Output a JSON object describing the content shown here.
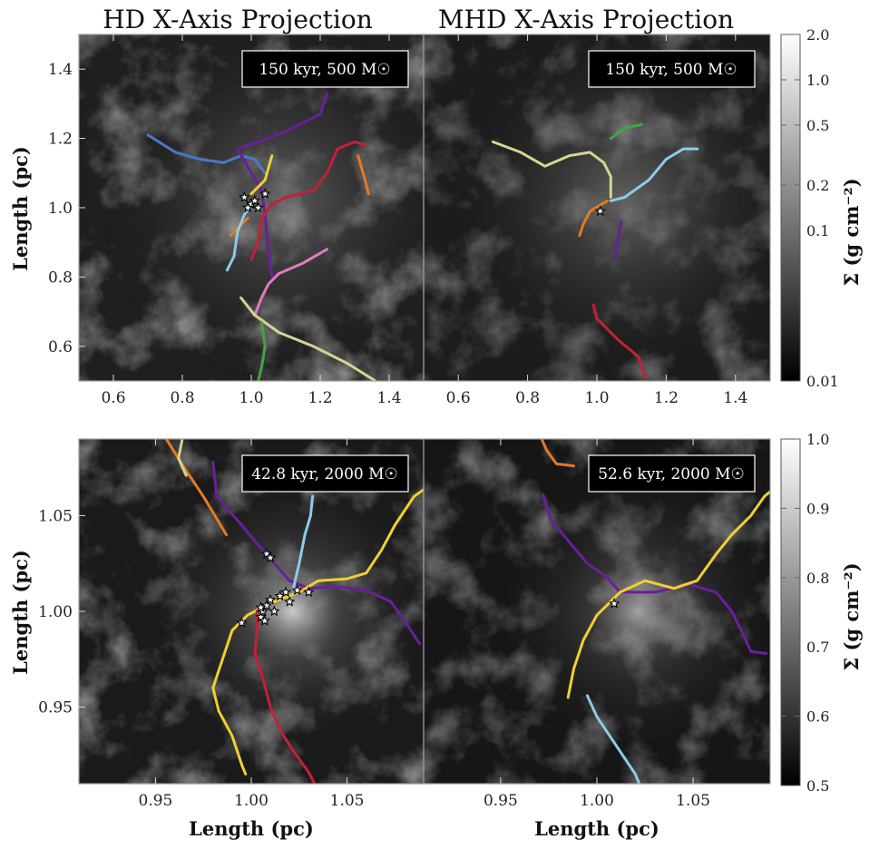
{
  "titles": {
    "left": "HD X-Axis Projection",
    "right": "MHD X-Axis Projection"
  },
  "axis_labels": {
    "x": "Length (pc)",
    "y": "Length (pc)",
    "colorbar": "Σ (g cm⁻²)"
  },
  "colors": {
    "blue": "#4a78c8",
    "purple": "#6a1f9a",
    "red": "#c42035",
    "yellow": "#f0d030",
    "orange": "#e57a22",
    "lightblue": "#8ccbea",
    "pink": "#e07cc2",
    "khaki": "#d8d490",
    "green": "#44a540"
  },
  "chart_data": [
    {
      "type": "heatmap",
      "panel": "top-left",
      "annotation": "150 kyr, 500 M☉",
      "xlim": [
        0.5,
        1.5
      ],
      "ylim": [
        0.5,
        1.5
      ],
      "xticks": [
        "0.6",
        "0.8",
        "1.0",
        "1.2",
        "1.4"
      ],
      "yticks": [
        "0.6",
        "0.8",
        "1.0",
        "1.2",
        "1.4"
      ],
      "stars": [
        [
          0.98,
          1.03
        ],
        [
          1.0,
          1.01
        ],
        [
          1.02,
          1.0
        ],
        [
          1.04,
          1.04
        ],
        [
          0.99,
          1.0
        ],
        [
          1.01,
          1.02
        ]
      ],
      "tracks": [
        {
          "color": "blue",
          "points": [
            [
              0.7,
              1.21
            ],
            [
              0.78,
              1.16
            ],
            [
              0.85,
              1.14
            ],
            [
              0.92,
              1.13
            ],
            [
              0.97,
              1.15
            ],
            [
              1.01,
              1.14
            ],
            [
              1.04,
              1.1
            ]
          ]
        },
        {
          "color": "purple",
          "points": [
            [
              1.22,
              1.33
            ],
            [
              1.2,
              1.27
            ],
            [
              1.14,
              1.24
            ],
            [
              1.1,
              1.22
            ],
            [
              1.05,
              1.2
            ],
            [
              0.96,
              1.17
            ],
            [
              1.03,
              1.05
            ],
            [
              1.04,
              0.98
            ],
            [
              1.05,
              0.87
            ],
            [
              1.06,
              0.8
            ]
          ]
        },
        {
          "color": "red",
          "points": [
            [
              1.33,
              1.18
            ],
            [
              1.3,
              1.19
            ],
            [
              1.25,
              1.17
            ],
            [
              1.22,
              1.1
            ],
            [
              1.18,
              1.05
            ],
            [
              1.1,
              1.03
            ],
            [
              1.06,
              1.01
            ],
            [
              1.03,
              0.97
            ],
            [
              1.02,
              0.9
            ],
            [
              1.0,
              0.85
            ]
          ]
        },
        {
          "color": "yellow",
          "points": [
            [
              1.06,
              1.15
            ],
            [
              1.04,
              1.08
            ],
            [
              1.02,
              1.06
            ],
            [
              1.0,
              1.04
            ]
          ]
        },
        {
          "color": "orange",
          "points": [
            [
              1.31,
              1.15
            ],
            [
              1.33,
              1.08
            ],
            [
              1.34,
              1.04
            ]
          ]
        },
        {
          "color": "orange",
          "points": [
            [
              0.94,
              0.92
            ],
            [
              0.97,
              0.95
            ],
            [
              0.99,
              0.97
            ]
          ]
        },
        {
          "color": "lightblue",
          "points": [
            [
              1.01,
              1.02
            ],
            [
              0.98,
              0.98
            ],
            [
              0.96,
              0.93
            ],
            [
              0.95,
              0.86
            ],
            [
              0.93,
              0.82
            ]
          ]
        },
        {
          "color": "pink",
          "points": [
            [
              1.22,
              0.88
            ],
            [
              1.15,
              0.84
            ],
            [
              1.08,
              0.81
            ],
            [
              1.05,
              0.78
            ],
            [
              1.03,
              0.74
            ],
            [
              1.01,
              0.69
            ]
          ]
        },
        {
          "color": "khaki",
          "points": [
            [
              0.97,
              0.74
            ],
            [
              1.01,
              0.69
            ],
            [
              1.08,
              0.64
            ],
            [
              1.18,
              0.6
            ],
            [
              1.28,
              0.55
            ],
            [
              1.36,
              0.5
            ]
          ]
        },
        {
          "color": "green",
          "points": [
            [
              1.03,
              0.67
            ],
            [
              1.04,
              0.6
            ],
            [
              1.03,
              0.54
            ],
            [
              1.02,
              0.5
            ]
          ]
        }
      ]
    },
    {
      "type": "heatmap",
      "panel": "top-right",
      "annotation": "150 kyr, 500 M☉",
      "xlim": [
        0.5,
        1.5
      ],
      "ylim": [
        0.5,
        1.5
      ],
      "xticks": [
        "0.6",
        "0.8",
        "1.0",
        "1.2",
        "1.4"
      ],
      "yticks": [],
      "stars": [
        [
          1.01,
          0.99
        ]
      ],
      "tracks": [
        {
          "color": "khaki",
          "points": [
            [
              0.7,
              1.19
            ],
            [
              0.78,
              1.16
            ],
            [
              0.85,
              1.12
            ],
            [
              0.92,
              1.15
            ],
            [
              0.98,
              1.16
            ],
            [
              1.02,
              1.13
            ],
            [
              1.04,
              1.09
            ],
            [
              1.04,
              1.03
            ]
          ]
        },
        {
          "color": "green",
          "points": [
            [
              1.04,
              1.2
            ],
            [
              1.08,
              1.23
            ],
            [
              1.13,
              1.24
            ]
          ]
        },
        {
          "color": "lightblue",
          "points": [
            [
              1.29,
              1.17
            ],
            [
              1.25,
              1.17
            ],
            [
              1.2,
              1.14
            ],
            [
              1.15,
              1.08
            ],
            [
              1.08,
              1.03
            ],
            [
              1.04,
              1.02
            ]
          ]
        },
        {
          "color": "orange",
          "points": [
            [
              1.03,
              1.02
            ],
            [
              0.98,
              0.99
            ],
            [
              0.96,
              0.95
            ],
            [
              0.95,
              0.92
            ]
          ]
        },
        {
          "color": "purple",
          "points": [
            [
              1.07,
              0.96
            ],
            [
              1.06,
              0.9
            ],
            [
              1.05,
              0.85
            ]
          ]
        },
        {
          "color": "red",
          "points": [
            [
              0.99,
              0.72
            ],
            [
              1.0,
              0.68
            ],
            [
              1.06,
              0.62
            ],
            [
              1.12,
              0.57
            ],
            [
              1.14,
              0.51
            ]
          ]
        }
      ]
    },
    {
      "type": "heatmap",
      "panel": "bottom-left",
      "annotation": "42.8 kyr, 2000 M☉",
      "xlim": [
        0.91,
        1.09
      ],
      "ylim": [
        0.91,
        1.09
      ],
      "xticks": [
        "0.95",
        "1.00",
        "1.05"
      ],
      "yticks": [
        "0.95",
        "1.00",
        "1.05"
      ],
      "stars": [
        [
          1.008,
          1.03
        ],
        [
          1.01,
          1.028
        ],
        [
          0.995,
          0.994
        ],
        [
          1.005,
          0.997
        ],
        [
          1.006,
          1.0
        ],
        [
          1.008,
          1.003
        ],
        [
          1.01,
          1.006
        ],
        [
          1.012,
          1.0
        ],
        [
          1.015,
          1.008
        ],
        [
          1.018,
          1.01
        ],
        [
          1.02,
          1.005
        ],
        [
          1.024,
          1.011
        ],
        [
          1.03,
          1.01
        ],
        [
          1.005,
          1.002
        ],
        [
          1.007,
          0.995
        ]
      ],
      "tracks": [
        {
          "color": "orange",
          "points": [
            [
              0.955,
              1.091
            ],
            [
              0.965,
              1.075
            ],
            [
              0.975,
              1.06
            ],
            [
              0.987,
              1.04
            ]
          ]
        },
        {
          "color": "khaki",
          "points": [
            [
              0.964,
              1.09
            ],
            [
              0.962,
              1.08
            ],
            [
              0.966,
              1.071
            ]
          ]
        },
        {
          "color": "purple",
          "points": [
            [
              0.98,
              1.078
            ],
            [
              0.982,
              1.06
            ],
            [
              0.995,
              1.045
            ],
            [
              1.005,
              1.033
            ],
            [
              1.012,
              1.025
            ],
            [
              1.02,
              1.016
            ],
            [
              1.03,
              1.012
            ],
            [
              1.045,
              1.013
            ],
            [
              1.06,
              1.011
            ],
            [
              1.073,
              1.005
            ],
            [
              1.08,
              0.995
            ],
            [
              1.088,
              0.983
            ]
          ]
        },
        {
          "color": "lightblue",
          "points": [
            [
              1.032,
              1.06
            ],
            [
              1.031,
              1.05
            ],
            [
              1.028,
              1.04
            ],
            [
              1.025,
              1.025
            ],
            [
              1.022,
              1.012
            ]
          ]
        },
        {
          "color": "yellow",
          "points": [
            [
              1.092,
              1.065
            ],
            [
              1.085,
              1.06
            ],
            [
              1.075,
              1.045
            ],
            [
              1.068,
              1.032
            ],
            [
              1.06,
              1.02
            ],
            [
              1.05,
              1.017
            ],
            [
              1.035,
              1.016
            ],
            [
              1.025,
              1.01
            ],
            [
              1.012,
              1.005
            ],
            [
              0.998,
              0.998
            ],
            [
              0.99,
              0.99
            ],
            [
              0.985,
              0.975
            ],
            [
              0.98,
              0.96
            ],
            [
              0.983,
              0.948
            ],
            [
              0.99,
              0.935
            ],
            [
              0.995,
              0.92
            ],
            [
              0.997,
              0.915
            ]
          ]
        },
        {
          "color": "red",
          "points": [
            [
              1.003,
              1.0
            ],
            [
              1.003,
              0.99
            ],
            [
              1.002,
              0.978
            ],
            [
              1.006,
              0.965
            ],
            [
              1.01,
              0.95
            ],
            [
              1.015,
              0.938
            ],
            [
              1.022,
              0.927
            ],
            [
              1.03,
              0.916
            ],
            [
              1.033,
              0.91
            ]
          ]
        }
      ]
    },
    {
      "type": "heatmap",
      "panel": "bottom-right",
      "annotation": "52.6 kyr, 2000 M☉",
      "xlim": [
        0.91,
        1.09
      ],
      "ylim": [
        0.91,
        1.09
      ],
      "xticks": [
        "0.95",
        "1.00",
        "1.05"
      ],
      "yticks": [],
      "stars": [
        [
          1.009,
          1.004
        ]
      ],
      "tracks": [
        {
          "color": "orange",
          "points": [
            [
              0.97,
              1.093
            ],
            [
              0.974,
              1.084
            ],
            [
              0.979,
              1.077
            ],
            [
              0.988,
              1.076
            ]
          ]
        },
        {
          "color": "purple",
          "points": [
            [
              0.972,
              1.061
            ],
            [
              0.976,
              1.048
            ],
            [
              0.985,
              1.037
            ],
            [
              0.995,
              1.025
            ],
            [
              1.005,
              1.018
            ],
            [
              1.012,
              1.01
            ],
            [
              1.03,
              1.01
            ],
            [
              1.048,
              1.014
            ],
            [
              1.062,
              1.01
            ],
            [
              1.07,
              1.0
            ],
            [
              1.075,
              0.99
            ],
            [
              1.08,
              0.979
            ],
            [
              1.088,
              0.978
            ]
          ]
        },
        {
          "color": "yellow",
          "points": [
            [
              1.093,
              1.065
            ],
            [
              1.087,
              1.06
            ],
            [
              1.08,
              1.05
            ],
            [
              1.07,
              1.04
            ],
            [
              1.062,
              1.03
            ],
            [
              1.052,
              1.016
            ],
            [
              1.04,
              1.012
            ],
            [
              1.025,
              1.016
            ],
            [
              1.012,
              1.01
            ],
            [
              1.0,
              0.998
            ],
            [
              0.993,
              0.985
            ],
            [
              0.988,
              0.97
            ],
            [
              0.985,
              0.955
            ]
          ]
        },
        {
          "color": "lightblue",
          "points": [
            [
              0.995,
              0.956
            ],
            [
              1.0,
              0.945
            ],
            [
              1.01,
              0.93
            ],
            [
              1.02,
              0.915
            ],
            [
              1.022,
              0.91
            ]
          ]
        }
      ]
    }
  ],
  "colorbars": [
    {
      "scale": "log",
      "range": [
        0.01,
        2.0
      ],
      "ticks": [
        "2.0",
        "1.0",
        "0.5",
        "0.2",
        "0.1",
        "0.01"
      ],
      "values": [
        2.0,
        1.0,
        0.5,
        0.2,
        0.1,
        0.01
      ]
    },
    {
      "scale": "linear",
      "range": [
        0.5,
        1.0
      ],
      "ticks": [
        "1.0",
        "0.9",
        "0.8",
        "0.7",
        "0.6",
        "0.5"
      ],
      "values": [
        1.0,
        0.9,
        0.8,
        0.7,
        0.6,
        0.5
      ]
    }
  ]
}
